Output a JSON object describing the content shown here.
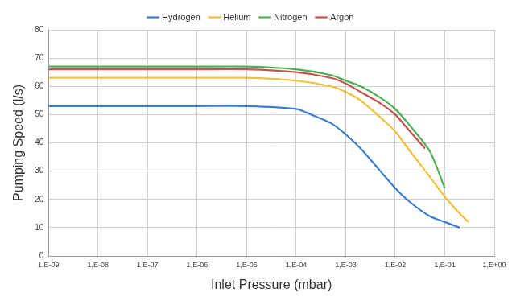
{
  "chart_data": {
    "type": "line",
    "x_label": "Inlet Pressure (mbar)",
    "y_label": "Pumping Speed (l/s)",
    "log": "x",
    "grid": true,
    "legend": "top",
    "xlim": [
      1e-09,
      1
    ],
    "xticks": [
      {
        "value": 1e-09,
        "label": "1,E-09"
      },
      {
        "value": 1e-08,
        "label": "1,E-08"
      },
      {
        "value": 1e-07,
        "label": "1,E-07"
      },
      {
        "value": 1e-06,
        "label": "1,E-06"
      },
      {
        "value": 1e-05,
        "label": "1,E-05"
      },
      {
        "value": 0.0001,
        "label": "1,E-04"
      },
      {
        "value": 0.001,
        "label": "1,E-03"
      },
      {
        "value": 0.01,
        "label": "1,E-02"
      },
      {
        "value": 0.1,
        "label": "1,E-01"
      },
      {
        "value": 1,
        "label": "1,E+00"
      }
    ],
    "ylim": [
      0,
      80
    ],
    "yticks": [
      0,
      10,
      20,
      30,
      40,
      50,
      60,
      70,
      80
    ],
    "series": [
      {
        "name": "Hydrogen",
        "color": "#3a7fd5",
        "marker": "none",
        "line_style": "solid",
        "x": [
          1e-09,
          1e-06,
          1e-05,
          0.0001,
          0.0002,
          0.0005,
          0.001,
          0.002,
          0.005,
          0.01,
          0.02,
          0.05,
          0.1,
          0.2
        ],
        "values": [
          53,
          53,
          53,
          52,
          50,
          47,
          43,
          38,
          30,
          24,
          19,
          14,
          12,
          10
        ]
      },
      {
        "name": "Helium",
        "color": "#f2c037",
        "marker": "none",
        "line_style": "solid",
        "x": [
          1e-09,
          1e-06,
          1e-05,
          0.0001,
          0.0005,
          0.001,
          0.002,
          0.005,
          0.01,
          0.02,
          0.05,
          0.1,
          0.2,
          0.3
        ],
        "values": [
          63,
          63,
          63,
          62,
          60,
          58,
          55,
          49,
          44,
          37,
          28,
          21,
          15,
          12
        ]
      },
      {
        "name": "Nitrogen",
        "color": "#4cb050",
        "marker": "none",
        "line_style": "solid",
        "x": [
          1e-09,
          1e-06,
          1e-05,
          0.0001,
          0.0005,
          0.001,
          0.002,
          0.005,
          0.01,
          0.02,
          0.05,
          0.1
        ],
        "values": [
          67,
          67,
          67,
          66,
          64,
          62,
          60,
          56,
          52,
          46,
          37,
          24
        ]
      },
      {
        "name": "Argon",
        "color": "#c8504f",
        "marker": "none",
        "line_style": "solid",
        "x": [
          1e-09,
          1e-06,
          1e-05,
          0.0001,
          0.0005,
          0.001,
          0.002,
          0.005,
          0.01,
          0.02,
          0.04
        ],
        "values": [
          66,
          66,
          66,
          65,
          63,
          61,
          58,
          54,
          50,
          44,
          38
        ]
      }
    ]
  }
}
